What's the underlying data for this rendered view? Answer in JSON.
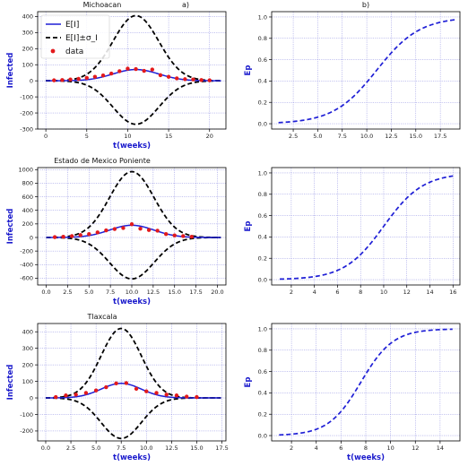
{
  "figure": {
    "colors": {
      "mean": "#1f1fd6",
      "band": "#000000",
      "data": "#e31a1c",
      "ep": "#1f1fd6",
      "grid": "#8a8ae0"
    },
    "legend": {
      "mean": "E[I]",
      "band": "E[I]±σ_I",
      "data": "data"
    }
  },
  "chart_data": [
    {
      "type": "line",
      "title": "Michoacan",
      "panel_label": "a)",
      "xlabel": "t(weeks)",
      "ylabel": "Infected",
      "xlim": [
        -1,
        22
      ],
      "ylim": [
        -300,
        430
      ],
      "xticks": [
        0,
        5,
        10,
        15,
        20
      ],
      "xtick_labels": [
        "0",
        "5",
        "10",
        "15",
        "20"
      ],
      "yticks": [
        -300,
        -200,
        -100,
        0,
        100,
        200,
        300,
        400
      ],
      "ytick_labels": [
        "-300",
        "-200",
        "-100",
        "0",
        "100",
        "200",
        "300",
        "400"
      ],
      "grid": true,
      "legend": "top-left",
      "peak": 11,
      "width": 2.8,
      "mean_peak": 70,
      "upper_peak": 405,
      "lower_peak": -270,
      "series": [
        {
          "name": "data",
          "x": [
            1,
            2,
            3,
            4,
            5,
            6,
            7,
            8,
            9,
            10,
            11,
            12,
            13,
            14,
            15,
            16,
            17,
            18,
            19,
            20
          ],
          "y": [
            3,
            5,
            8,
            12,
            18,
            25,
            33,
            45,
            60,
            76,
            73,
            62,
            70,
            35,
            25,
            15,
            10,
            8,
            5,
            3
          ]
        }
      ]
    },
    {
      "type": "line",
      "title": "",
      "panel_label": "b)",
      "xlabel": "",
      "ylabel": "Ep",
      "xlim": [
        0.3,
        19.5
      ],
      "ylim": [
        -0.05,
        1.05
      ],
      "xticks": [
        2.5,
        5,
        7.5,
        10,
        12.5,
        15,
        17.5
      ],
      "xtick_labels": [
        "2.5",
        "5.0",
        "7.5",
        "10.0",
        "12.5",
        "15.0",
        "17.5"
      ],
      "yticks": [
        0,
        0.2,
        0.4,
        0.6,
        0.8,
        1.0
      ],
      "ytick_labels": [
        "0.0",
        "0.2",
        "0.4",
        "0.6",
        "0.8",
        "1.0"
      ],
      "grid": true,
      "legend": "none",
      "x_start": 1,
      "x_end": 19,
      "mid": 11,
      "scale": 2.2
    },
    {
      "type": "line",
      "title": "Estado de Mexico Poniente",
      "panel_label": "",
      "xlabel": "t(weeks)",
      "ylabel": "Infected",
      "xlim": [
        -1,
        21
      ],
      "ylim": [
        -700,
        1030
      ],
      "xticks": [
        0,
        2.5,
        5,
        7.5,
        10,
        12.5,
        15,
        17.5,
        20
      ],
      "xtick_labels": [
        "0.0",
        "2.5",
        "5.0",
        "7.5",
        "10.0",
        "12.5",
        "15.0",
        "17.5",
        "20.0"
      ],
      "yticks": [
        -600,
        -400,
        -200,
        0,
        200,
        400,
        600,
        800,
        1000
      ],
      "ytick_labels": [
        "-600",
        "-400",
        "-200",
        "0",
        "200",
        "400",
        "600",
        "800",
        "1000"
      ],
      "grid": true,
      "legend": "none",
      "peak": 10,
      "width": 2.6,
      "mean_peak": 180,
      "upper_peak": 970,
      "lower_peak": -610,
      "series": [
        {
          "name": "data",
          "x": [
            1,
            2,
            3,
            4,
            5,
            6,
            7,
            8,
            9,
            10,
            11,
            12,
            13,
            14,
            15,
            16,
            17
          ],
          "y": [
            5,
            10,
            20,
            35,
            50,
            75,
            105,
            125,
            140,
            195,
            130,
            110,
            100,
            50,
            30,
            20,
            10
          ]
        }
      ]
    },
    {
      "type": "line",
      "title": "",
      "panel_label": "",
      "xlabel": "",
      "ylabel": "Ep",
      "xlim": [
        0.3,
        16.6
      ],
      "ylim": [
        -0.05,
        1.05
      ],
      "xticks": [
        2,
        4,
        6,
        8,
        10,
        12,
        14,
        16
      ],
      "xtick_labels": [
        "2",
        "4",
        "6",
        "8",
        "10",
        "12",
        "14",
        "16"
      ],
      "yticks": [
        0,
        0.2,
        0.4,
        0.6,
        0.8,
        1.0
      ],
      "ytick_labels": [
        "0.0",
        "0.2",
        "0.4",
        "0.6",
        "0.8",
        "1.0"
      ],
      "grid": true,
      "legend": "none",
      "x_start": 1,
      "x_end": 16,
      "mid": 10,
      "scale": 1.7
    },
    {
      "type": "line",
      "title": "Tlaxcala",
      "panel_label": "",
      "xlabel": "t(weeks)",
      "ylabel": "Infected",
      "xlim": [
        -0.8,
        17.9
      ],
      "ylim": [
        -260,
        450
      ],
      "xticks": [
        0,
        2.5,
        5,
        7.5,
        10,
        12.5,
        15,
        17.5
      ],
      "xtick_labels": [
        "0.0",
        "2.5",
        "5.0",
        "7.5",
        "10.0",
        "12.5",
        "15.0",
        "17.5"
      ],
      "yticks": [
        -200,
        -100,
        0,
        100,
        200,
        300,
        400
      ],
      "ytick_labels": [
        "-200",
        "-100",
        "0",
        "100",
        "200",
        "300",
        "400"
      ],
      "grid": true,
      "legend": "none",
      "peak": 7.5,
      "width": 2.0,
      "mean_peak": 88,
      "upper_peak": 420,
      "lower_peak": -245,
      "series": [
        {
          "name": "data",
          "x": [
            1,
            2,
            3,
            4,
            5,
            6,
            7,
            8,
            9,
            10,
            11,
            12,
            13,
            14,
            15
          ],
          "y": [
            5,
            15,
            20,
            30,
            45,
            65,
            88,
            90,
            55,
            40,
            30,
            20,
            15,
            8,
            5
          ]
        }
      ]
    },
    {
      "type": "line",
      "title": "",
      "panel_label": "",
      "xlabel": "t(weeks)",
      "ylabel": "Ep",
      "xlim": [
        0.4,
        15.6
      ],
      "ylim": [
        -0.05,
        1.05
      ],
      "xticks": [
        2,
        4,
        6,
        8,
        10,
        12,
        14
      ],
      "xtick_labels": [
        "2",
        "4",
        "6",
        "8",
        "10",
        "12",
        "14"
      ],
      "yticks": [
        0,
        0.2,
        0.4,
        0.6,
        0.8,
        1.0
      ],
      "ytick_labels": [
        "0.0",
        "0.2",
        "0.4",
        "0.6",
        "0.8",
        "1.0"
      ],
      "grid": true,
      "legend": "none",
      "x_start": 1,
      "x_end": 15,
      "mid": 7.6,
      "scale": 1.3
    }
  ]
}
